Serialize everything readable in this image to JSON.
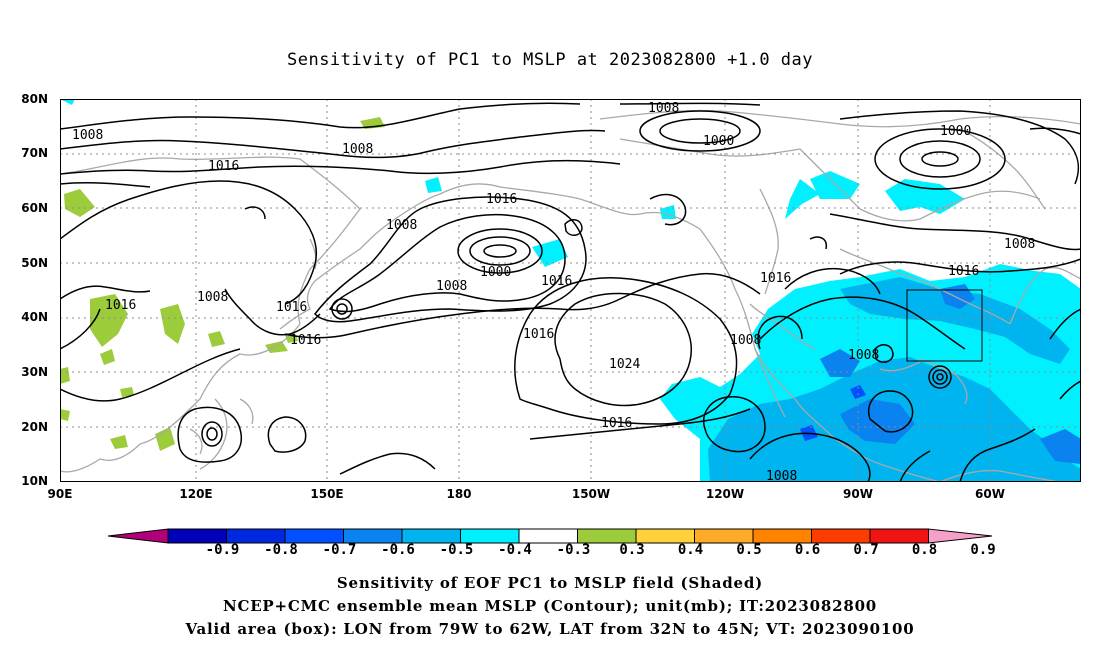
{
  "title": "Sensitivity of PC1 to MSLP at 2023082800 +1.0 day",
  "lat_labels": [
    "80N",
    "70N",
    "60N",
    "50N",
    "40N",
    "30N",
    "20N",
    "10N"
  ],
  "lon_labels": [
    "90E",
    "120E",
    "150E",
    "180",
    "150W",
    "120W",
    "90W",
    "60W"
  ],
  "contour_labels": [
    "1008",
    "1008",
    "1016",
    "1008",
    "1008",
    "1000",
    "1016",
    "1016",
    "1016",
    "1008",
    "1016",
    "1016",
    "1016",
    "1016",
    "1024",
    "1008",
    "1008",
    "1000",
    "1000",
    "1008",
    "1016",
    "1016",
    "1008",
    "1008"
  ],
  "colorbar": {
    "labels": [
      "-0.9",
      "-0.8",
      "-0.7",
      "-0.6",
      "-0.5",
      "-0.4",
      "-0.3",
      "0.3",
      "0.4",
      "0.5",
      "0.6",
      "0.7",
      "0.8",
      "0.9"
    ],
    "colors": [
      "#b0007a",
      "#0000b8",
      "#0028e0",
      "#0050ff",
      "#0a82f0",
      "#00b4f0",
      "#00f0ff",
      "#ffffff",
      "#9ccc3c",
      "#ffd23c",
      "#ffaa28",
      "#ff8200",
      "#ff3c00",
      "#f01414",
      "#f5a0c8"
    ]
  },
  "footer": {
    "line1": "Sensitivity of EOF PC1 to MSLP field (Shaded)",
    "line2": "NCEP+CMC ensemble mean MSLP (Contour); unit(mb); IT:2023082800",
    "line3": "Valid area (box): LON from 79W to 62W, LAT from 32N to 45N; VT: 2023090100"
  }
}
